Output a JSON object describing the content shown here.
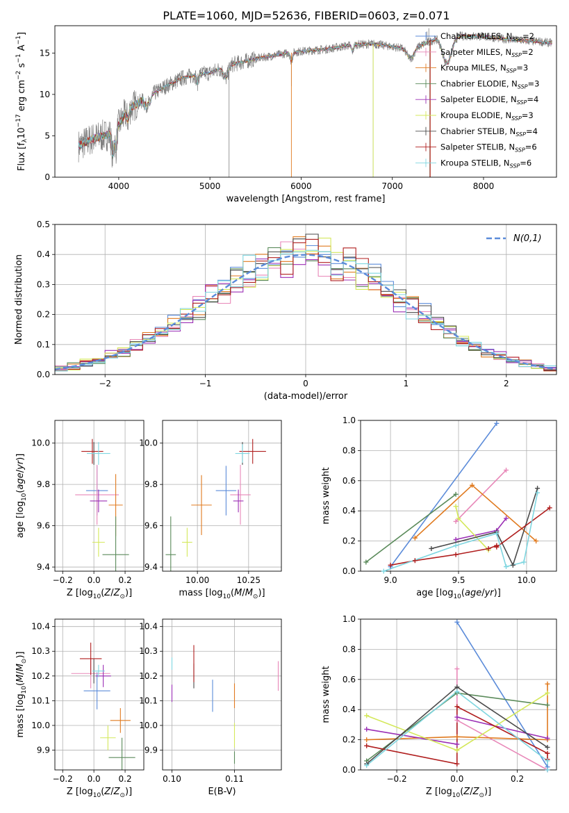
{
  "figure_title": "PLATE=1060, MJD=52636, FIBERID=0603, z=0.071",
  "models": [
    {
      "name": "Chabrier MILES",
      "n": "2",
      "color": "#5b8bd9"
    },
    {
      "name": "Salpeter MILES",
      "n": "2",
      "color": "#e887b8"
    },
    {
      "name": "Kroupa MILES",
      "n": "3",
      "color": "#e07a1f"
    },
    {
      "name": "Chabrier ELODIE",
      "n": "3",
      "color": "#5a8a5a"
    },
    {
      "name": "Salpeter ELODIE",
      "n": "4",
      "color": "#9b2fb5"
    },
    {
      "name": "Kroupa ELODIE",
      "n": "3",
      "color": "#d4e85a"
    },
    {
      "name": "Chabrier STELIB",
      "n": "4",
      "color": "#4a4a4a"
    },
    {
      "name": "Salpeter STELIB",
      "n": "6",
      "color": "#b01e1e"
    },
    {
      "name": "Kroupa STELIB",
      "n": "6",
      "color": "#7fd6e0"
    }
  ],
  "chart_data": [
    {
      "id": "spectrum",
      "type": "line",
      "xlabel": "wavelength [Angstrom, rest frame]",
      "ylabel": "Flux [f_λ 10^-17 erg cm^-2 s^-1 A^-1]",
      "xlim": [
        3300,
        8800
      ],
      "ylim": [
        0,
        18.3
      ],
      "xticks": [
        4000,
        5000,
        6000,
        7000,
        8000
      ],
      "yticks": [
        0,
        5,
        10,
        15
      ],
      "legend_prefix": "N",
      "legend_sub": "SSP",
      "data_color": "#808080",
      "x_range": [
        3560,
        8750
      ],
      "continuum": [
        [
          3560,
          3.8
        ],
        [
          3700,
          4.6
        ],
        [
          3900,
          5.2
        ],
        [
          4000,
          6.3
        ],
        [
          4100,
          8.2
        ],
        [
          4300,
          9.5
        ],
        [
          4500,
          10.9
        ],
        [
          4700,
          12.0
        ],
        [
          4860,
          12.4
        ],
        [
          5000,
          12.6
        ],
        [
          5200,
          13.5
        ],
        [
          5500,
          14.3
        ],
        [
          5800,
          14.9
        ],
        [
          6000,
          15.2
        ],
        [
          6300,
          15.5
        ],
        [
          6563,
          16.0
        ],
        [
          6800,
          16.1
        ],
        [
          7100,
          15.6
        ],
        [
          7300,
          15.9
        ],
        [
          7400,
          16.3
        ],
        [
          7500,
          16.9
        ],
        [
          7700,
          17.1
        ],
        [
          8000,
          17.0
        ],
        [
          8300,
          16.6
        ],
        [
          8600,
          16.4
        ],
        [
          8750,
          16.2
        ]
      ],
      "absorption": [
        [
          3934,
          3.0,
          12
        ],
        [
          3969,
          2.5,
          10
        ],
        [
          4101,
          1.2,
          12
        ],
        [
          4300,
          0.9,
          15
        ],
        [
          4340,
          1.0,
          12
        ],
        [
          4861,
          1.1,
          10
        ],
        [
          5175,
          1.4,
          25
        ],
        [
          5893,
          1.0,
          12
        ],
        [
          6563,
          0.8,
          12
        ],
        [
          7600,
          3.2,
          50
        ],
        [
          7200,
          1.4,
          40
        ]
      ],
      "spikes_down": [
        [
          5210,
          0
        ],
        [
          5893,
          11.0
        ],
        [
          6790,
          0
        ],
        [
          7410,
          0
        ]
      ],
      "spikes_up": [
        [
          7380,
          17.6
        ],
        [
          7400,
          18.0
        ]
      ]
    },
    {
      "id": "residuals",
      "type": "histogram",
      "xlabel": "(data-model)/error",
      "ylabel": "Normed distribution",
      "xlim": [
        -2.5,
        2.5
      ],
      "ylim": [
        0,
        0.5
      ],
      "xticks": [
        -2,
        -1,
        0,
        1,
        2
      ],
      "yticks": [
        0,
        0.1,
        0.2,
        0.3,
        0.4,
        0.5
      ],
      "bins": 40,
      "gaussian_label": "N(0,1)",
      "gaussian_color": "#5b8bd9"
    },
    {
      "id": "age-vs-Z",
      "type": "errorbar",
      "xlabel": "Z [log10(Z/Z☉)]",
      "ylabel": "age  [log10(age/yr)]",
      "xlim": [
        -0.25,
        0.32
      ],
      "ylim": [
        9.38,
        10.11
      ],
      "xticks": [
        -0.2,
        0.0,
        0.2
      ],
      "yticks": [
        9.4,
        9.6,
        9.8,
        10.0
      ],
      "points": [
        {
          "m": 0,
          "x": 0.02,
          "xe": 0.14,
          "y": 9.77,
          "ye": 0.24
        },
        {
          "m": 1,
          "x": 0.02,
          "xe": 0.28,
          "y": 9.75,
          "ye": 0.29
        },
        {
          "m": 2,
          "x": 0.14,
          "xe": 0.09,
          "y": 9.7,
          "ye": 0.3
        },
        {
          "m": 3,
          "x": 0.14,
          "xe": 0.17,
          "y": 9.46,
          "ye": 0.37
        },
        {
          "m": 4,
          "x": 0.03,
          "xe": 0.11,
          "y": 9.72,
          "ye": 0.11
        },
        {
          "m": 5,
          "x": 0.03,
          "xe": 0.08,
          "y": 9.52,
          "ye": 0.14
        },
        {
          "m": 6,
          "x": 0.0,
          "xe": 0.0,
          "y": 9.95,
          "ye": 0.11
        },
        {
          "m": 7,
          "x": -0.01,
          "xe": 0.14,
          "y": 9.96,
          "ye": 0.12
        },
        {
          "m": 8,
          "x": 0.03,
          "xe": 0.15,
          "y": 9.95,
          "ye": 0.11
        }
      ]
    },
    {
      "id": "age-vs-mass",
      "type": "errorbar",
      "xlabel": "mass [log10(M/M☉)]",
      "ylabel": "",
      "xlim": [
        9.83,
        10.41
      ],
      "ylim": [
        9.38,
        10.11
      ],
      "xticks": [
        10.0,
        10.25
      ],
      "yticks": [
        9.4,
        9.6,
        9.8,
        10.0
      ],
      "points": [
        {
          "m": 0,
          "x": 10.14,
          "xe": 0.1,
          "y": 9.77,
          "ye": 0.24
        },
        {
          "m": 1,
          "x": 10.21,
          "xe": 0.1,
          "y": 9.75,
          "ye": 0.29
        },
        {
          "m": 2,
          "x": 10.02,
          "xe": 0.1,
          "y": 9.7,
          "ye": 0.29
        },
        {
          "m": 3,
          "x": 9.87,
          "xe": 0.05,
          "y": 9.46,
          "ye": 0.37
        },
        {
          "m": 4,
          "x": 10.2,
          "xe": 0.05,
          "y": 9.72,
          "ye": 0.11
        },
        {
          "m": 5,
          "x": 9.95,
          "xe": 0.05,
          "y": 9.52,
          "ye": 0.14
        },
        {
          "m": 6,
          "x": 10.22,
          "xe": 0.0,
          "y": 9.95,
          "ye": 0.11
        },
        {
          "m": 7,
          "x": 10.27,
          "xe": 0.13,
          "y": 9.96,
          "ye": 0.12
        },
        {
          "m": 8,
          "x": 10.22,
          "xe": 0.07,
          "y": 9.95,
          "ye": 0.09
        }
      ]
    },
    {
      "id": "weight-vs-age",
      "type": "line",
      "xlabel": "age  [log10(age/yr)]",
      "ylabel": "mass weight",
      "xlim": [
        8.78,
        10.22
      ],
      "ylim": [
        0,
        1.0
      ],
      "xticks": [
        9.0,
        9.5,
        10.0
      ],
      "yticks": [
        0.0,
        0.2,
        0.4,
        0.6,
        0.8,
        1.0
      ],
      "series": [
        {
          "m": 0,
          "x": [
            9.0,
            9.78
          ],
          "y": [
            0.03,
            0.98
          ]
        },
        {
          "m": 1,
          "x": [
            9.48,
            9.85
          ],
          "y": [
            0.33,
            0.67
          ]
        },
        {
          "m": 2,
          "x": [
            9.18,
            9.6,
            10.07
          ],
          "y": [
            0.22,
            0.57,
            0.2
          ]
        },
        {
          "m": 3,
          "x": [
            8.82,
            9.48
          ],
          "y": [
            0.06,
            0.51
          ]
        },
        {
          "m": 4,
          "x": [
            9.48,
            9.78,
            9.85
          ],
          "y": [
            0.21,
            0.27,
            0.35
          ]
        },
        {
          "m": 5,
          "x": [
            9.48,
            9.5,
            9.72
          ],
          "y": [
            0.43,
            0.35,
            0.14
          ]
        },
        {
          "m": 6,
          "x": [
            9.3,
            9.78,
            9.9,
            10.08
          ],
          "y": [
            0.15,
            0.26,
            0.04,
            0.55
          ]
        },
        {
          "m": 7,
          "x": [
            9.0,
            9.18,
            9.48,
            9.72,
            9.78,
            9.78,
            10.17
          ],
          "y": [
            0.04,
            0.07,
            0.11,
            0.15,
            0.17,
            0.16,
            0.42
          ]
        },
        {
          "m": 8,
          "x": [
            8.95,
            9.48,
            9.78,
            9.85,
            9.98,
            10.08
          ],
          "y": [
            0.0,
            0.17,
            0.25,
            0.03,
            0.06,
            0.52
          ]
        }
      ]
    },
    {
      "id": "mass-vs-Z",
      "type": "errorbar",
      "xlabel": "Z [log10(Z/Z☉)]",
      "ylabel": "mass [log10(M/M☉)]",
      "xlim": [
        -0.25,
        0.32
      ],
      "ylim": [
        9.82,
        10.43
      ],
      "xticks": [
        -0.2,
        0.0,
        0.2
      ],
      "yticks": [
        9.9,
        10.0,
        10.1,
        10.2,
        10.3,
        10.4
      ],
      "points": [
        {
          "m": 0,
          "x": 0.02,
          "xe": 0.17,
          "y": 10.14,
          "ye": 0.15
        },
        {
          "m": 1,
          "x": -0.02,
          "xe": 0.25,
          "y": 10.21,
          "ye": 0.12
        },
        {
          "m": 2,
          "x": 0.17,
          "xe": 0.13,
          "y": 10.02,
          "ye": 0.1
        },
        {
          "m": 3,
          "x": 0.18,
          "xe": 0.17,
          "y": 9.87,
          "ye": 0.16
        },
        {
          "m": 4,
          "x": 0.06,
          "xe": 0.1,
          "y": 10.2,
          "ye": 0.09
        },
        {
          "m": 5,
          "x": 0.09,
          "xe": 0.1,
          "y": 9.95,
          "ye": 0.1
        },
        {
          "m": 6,
          "x": 0.0,
          "xe": 0.0,
          "y": 10.22,
          "ye": 0.1
        },
        {
          "m": 7,
          "x": -0.02,
          "xe": 0.14,
          "y": 10.27,
          "ye": 0.13
        },
        {
          "m": 8,
          "x": 0.03,
          "xe": 0.08,
          "y": 10.22,
          "ye": 0.05
        }
      ]
    },
    {
      "id": "mass-vs-ebv",
      "type": "errorbar",
      "xlabel": "E(B-V)",
      "ylabel": "",
      "xlim": [
        0.0985,
        0.1175
      ],
      "ylim": [
        9.82,
        10.43
      ],
      "xticks": [
        0.1,
        0.11
      ],
      "yticks": [
        9.9,
        10.0,
        10.1,
        10.2,
        10.3,
        10.4
      ],
      "points": [
        {
          "m": 0,
          "x": 0.1065,
          "xe": 0,
          "y": 10.12,
          "ye": 0.13
        },
        {
          "m": 1,
          "x": 0.117,
          "xe": 0,
          "y": 10.2,
          "ye": 0.12
        },
        {
          "m": 2,
          "x": 0.11,
          "xe": 0,
          "y": 10.12,
          "ye": 0.1
        },
        {
          "m": 3,
          "x": 0.11,
          "xe": 0,
          "y": 9.87,
          "ye": 0.05
        },
        {
          "m": 4,
          "x": 0.1,
          "xe": 0,
          "y": 10.13,
          "ye": 0.07
        },
        {
          "m": 5,
          "x": 0.11,
          "xe": 0,
          "y": 9.96,
          "ye": 0.1
        },
        {
          "m": 6,
          "x": 0.1035,
          "xe": 0,
          "y": 10.2,
          "ye": 0.1
        },
        {
          "m": 7,
          "x": 0.1035,
          "xe": 0,
          "y": 10.25,
          "ye": 0.15
        },
        {
          "m": 8,
          "x": 0.1,
          "xe": 0,
          "y": 10.25,
          "ye": 0.05
        }
      ]
    },
    {
      "id": "weight-vs-Z",
      "type": "line",
      "xlabel": "Z [log10(Z/Z☉)]",
      "ylabel": "mass weight",
      "xlim": [
        -0.32,
        0.33
      ],
      "ylim": [
        0,
        1.0
      ],
      "xticks": [
        -0.2,
        0.0,
        0.2
      ],
      "yticks": [
        0.0,
        0.2,
        0.4,
        0.6,
        0.8,
        1.0
      ],
      "series": [
        {
          "m": 0,
          "x": [
            0.0,
            0.3
          ],
          "y": [
            0.98,
            0.02
          ]
        },
        {
          "m": 1,
          "x": [
            0.0,
            0.0,
            0.3
          ],
          "y": [
            0.67,
            0.33,
            0.0
          ]
        },
        {
          "m": 2,
          "x": [
            -0.3,
            0.0,
            0.3,
            0.3
          ],
          "y": [
            0.2,
            0.22,
            0.2,
            0.57
          ]
        },
        {
          "m": 3,
          "x": [
            -0.3,
            0.0,
            0.3
          ],
          "y": [
            0.06,
            0.51,
            0.43
          ]
        },
        {
          "m": 4,
          "x": [
            -0.3,
            0.0,
            0.0,
            0.3
          ],
          "y": [
            0.27,
            0.17,
            0.35,
            0.21
          ]
        },
        {
          "m": 5,
          "x": [
            -0.3,
            0.0,
            0.3
          ],
          "y": [
            0.36,
            0.13,
            0.51
          ]
        },
        {
          "m": 6,
          "x": [
            -0.3,
            0.0,
            0.3
          ],
          "y": [
            0.04,
            0.55,
            0.15
          ]
        },
        {
          "m": 7,
          "x": [
            -0.3,
            0.0,
            0.0,
            0.3,
            0.3
          ],
          "y": [
            0.16,
            0.04,
            0.42,
            0.11,
            0.07
          ]
        },
        {
          "m": 8,
          "x": [
            -0.3,
            0.0,
            0.3,
            0.3
          ],
          "y": [
            0.03,
            0.52,
            0.06,
            0.0
          ]
        }
      ]
    }
  ]
}
